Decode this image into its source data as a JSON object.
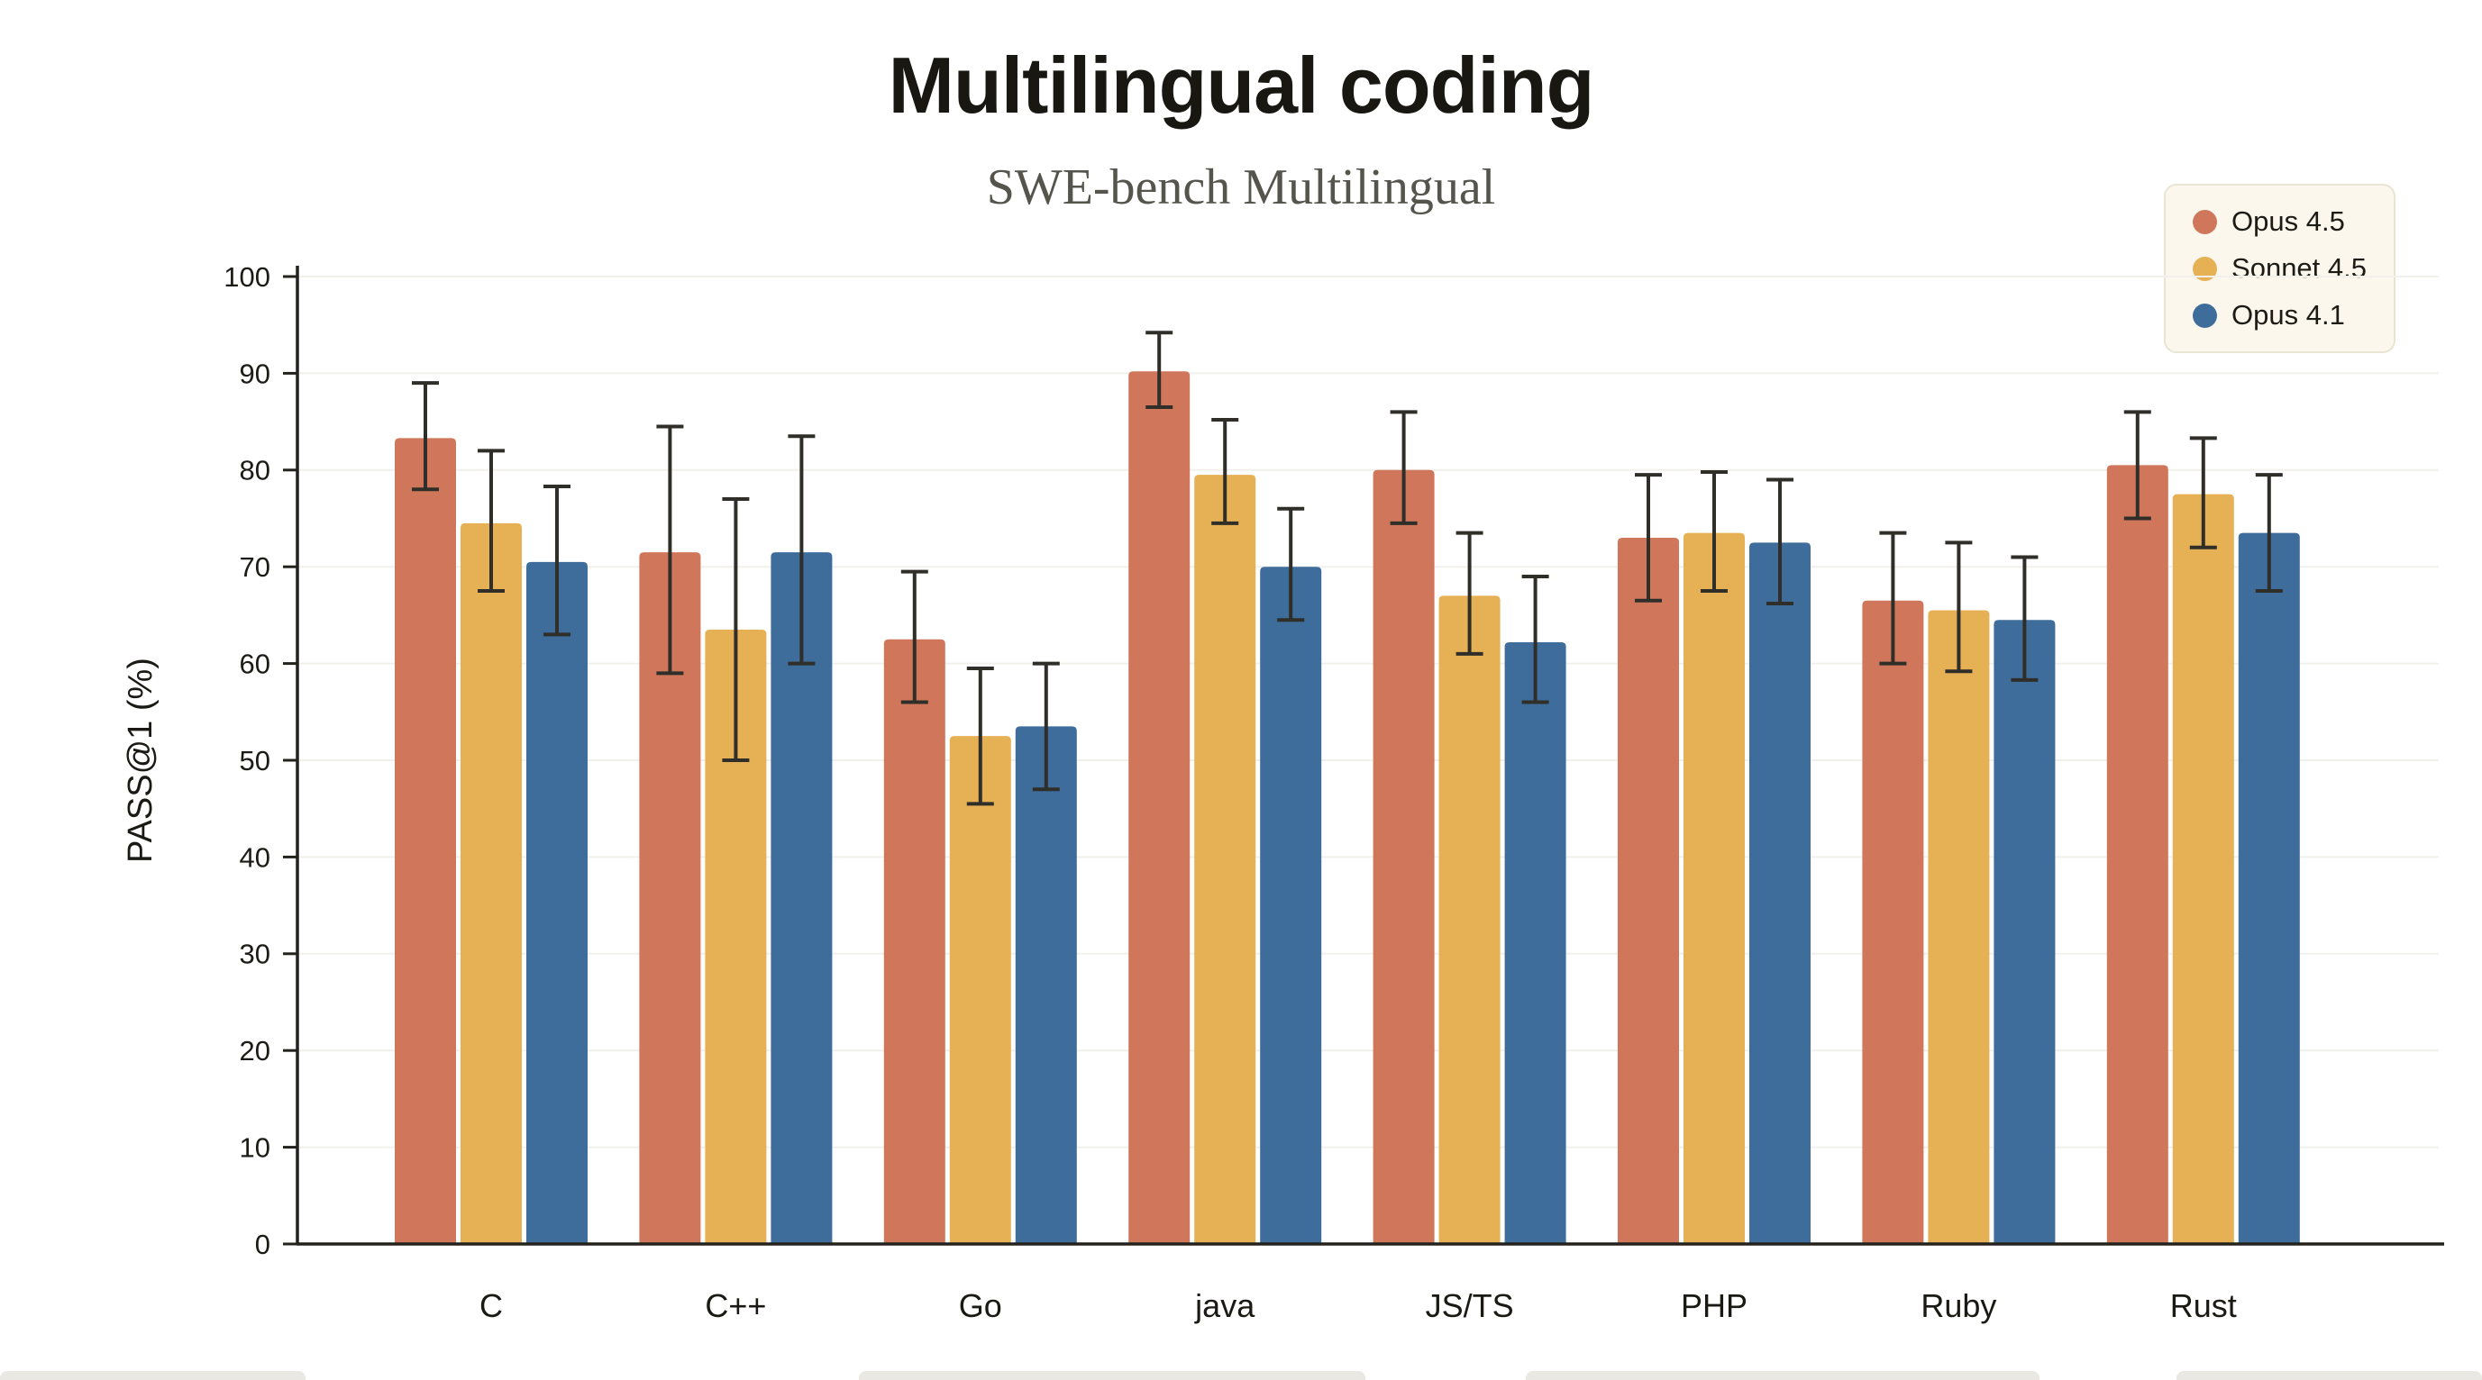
{
  "page": {
    "title": "Multilingual coding",
    "subtitle": "SWE-bench Multilingual"
  },
  "chart_data": {
    "type": "bar",
    "title": "Multilingual coding",
    "subtitle": "SWE-bench Multilingual",
    "xlabel": "",
    "ylabel": "PASS@1 (%)",
    "ylim": [
      0,
      100
    ],
    "ytick_step": 10,
    "grid": true,
    "legend_position": "top-right",
    "error_bars": true,
    "categories": [
      "C",
      "C++",
      "Go",
      "java",
      "JS/TS",
      "PHP",
      "Ruby",
      "Rust"
    ],
    "series": [
      {
        "name": "Opus 4.5",
        "color": "#D0775B",
        "values": [
          83.3,
          71.5,
          62.5,
          90.2,
          80.0,
          73.0,
          66.5,
          80.5
        ],
        "err_lo": [
          78.0,
          59.0,
          56.0,
          86.5,
          74.5,
          66.5,
          60.0,
          75.0
        ],
        "err_hi": [
          89.0,
          84.5,
          69.5,
          94.2,
          86.0,
          79.5,
          73.5,
          86.0
        ]
      },
      {
        "name": "Sonnet 4.5",
        "color": "#E6B055",
        "values": [
          74.5,
          63.5,
          52.5,
          79.5,
          67.0,
          73.5,
          65.5,
          77.5
        ],
        "err_lo": [
          67.5,
          50.0,
          45.5,
          74.5,
          61.0,
          67.5,
          59.2,
          72.0
        ],
        "err_hi": [
          82.0,
          77.0,
          59.5,
          85.2,
          73.5,
          79.8,
          72.5,
          83.3
        ]
      },
      {
        "name": "Opus 4.1",
        "color": "#3E6D9C",
        "values": [
          70.5,
          71.5,
          53.5,
          70.0,
          62.2,
          72.5,
          64.5,
          73.5
        ],
        "err_lo": [
          63.0,
          60.0,
          47.0,
          64.5,
          56.0,
          66.2,
          58.3,
          67.5
        ],
        "err_hi": [
          78.3,
          83.5,
          60.0,
          76.0,
          69.0,
          79.0,
          71.0,
          79.5
        ]
      }
    ],
    "colors": {
      "axis": "#23221D",
      "error_bar": "#2F2E29",
      "gridline": "#F1F0EB",
      "legend_bg": "#FBF7EC",
      "legend_border": "#EAE4D4",
      "subtitle": "#55544d",
      "title": "#181712"
    }
  }
}
